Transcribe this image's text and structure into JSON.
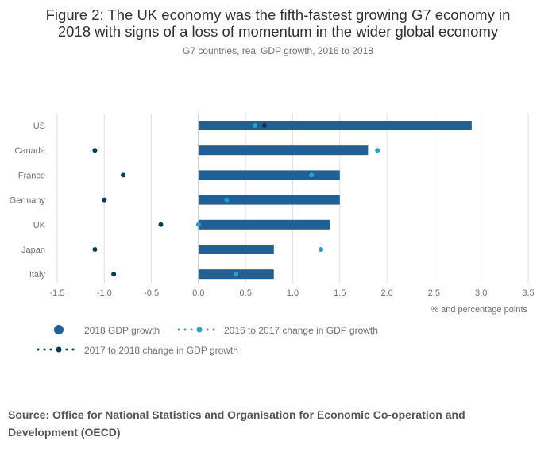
{
  "title_line1": "Figure 2: The UK economy was the fifth-fastest growing G7 economy in",
  "title_line2": "2018 with signs of a loss of momentum in the wider global economy",
  "subtitle": "G7 countries, real GDP growth, 2016 to 2018",
  "source": "Source: Office for National Statistics and Organisation for Economic Co-operation and Development (OECD)",
  "colors": {
    "bar": "#206095",
    "change_2016_2017": "#27a0cc",
    "change_2017_2018": "#003c57",
    "grid": "#e0e0e0",
    "zero_line": "#b0b0b0"
  },
  "chart_data": {
    "type": "bar",
    "orientation": "horizontal",
    "categories": [
      "US",
      "Canada",
      "France",
      "Germany",
      "UK",
      "Japan",
      "Italy"
    ],
    "series": [
      {
        "name": "2018 GDP growth",
        "kind": "bar",
        "values": [
          2.9,
          1.8,
          1.5,
          1.5,
          1.4,
          0.8,
          0.8
        ]
      },
      {
        "name": "2016 to 2017 change in GDP growth",
        "kind": "dot",
        "values": [
          0.6,
          1.9,
          1.2,
          0.3,
          0.0,
          1.3,
          0.4
        ]
      },
      {
        "name": "2017 to 2018 change in GDP growth",
        "kind": "dot",
        "values": [
          0.7,
          -1.1,
          -0.8,
          -1.0,
          -0.4,
          -1.1,
          -0.9
        ]
      }
    ],
    "xlim": [
      -1.5,
      3.5
    ],
    "xticks": [
      "-1.5",
      "-1.0",
      "-0.5",
      "0.0",
      "0.5",
      "1.0",
      "1.5",
      "2.0",
      "2.5",
      "3.0",
      "3.5"
    ],
    "xlabel": "% and percentage points",
    "ylabel": "",
    "grid": true,
    "legend_position": "bottom-left"
  }
}
